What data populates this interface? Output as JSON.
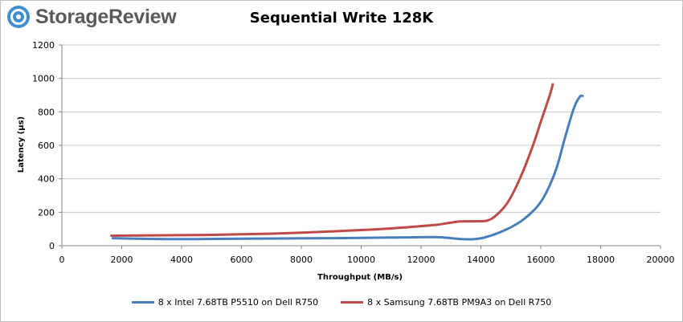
{
  "brand": {
    "name": "StorageReview",
    "logo_color": "#3f8fcf"
  },
  "chart_data": {
    "type": "line",
    "title": "Sequential Write 128K",
    "xlabel": "Throughput (MB/s)",
    "ylabel": "Latency (µs)",
    "xlim": [
      0,
      20000
    ],
    "ylim": [
      0,
      1200
    ],
    "x_ticks": [
      0,
      2000,
      4000,
      6000,
      8000,
      10000,
      12000,
      14000,
      16000,
      18000,
      20000
    ],
    "y_ticks": [
      0,
      200,
      400,
      600,
      800,
      1000,
      1200
    ],
    "grid": "horizontal",
    "legend": "bottom",
    "series": [
      {
        "name": "8 x Intel 7.68TB P5510 on Dell R750",
        "color": "#4a7ebb",
        "points": [
          [
            1700,
            45
          ],
          [
            2500,
            42
          ],
          [
            3500,
            40
          ],
          [
            4500,
            40
          ],
          [
            6000,
            42
          ],
          [
            8000,
            44
          ],
          [
            10000,
            47
          ],
          [
            12000,
            51
          ],
          [
            12600,
            51
          ],
          [
            13000,
            45
          ],
          [
            13400,
            39
          ],
          [
            13800,
            40
          ],
          [
            14100,
            48
          ],
          [
            14600,
            78
          ],
          [
            15200,
            130
          ],
          [
            15700,
            200
          ],
          [
            16100,
            290
          ],
          [
            16500,
            450
          ],
          [
            16800,
            640
          ],
          [
            17100,
            820
          ],
          [
            17300,
            890
          ],
          [
            17400,
            895
          ]
        ]
      },
      {
        "name": "8 x Samsung 7.68TB PM9A3 on Dell R750",
        "color": "#be4b48",
        "points": [
          [
            1650,
            60
          ],
          [
            3000,
            62
          ],
          [
            5000,
            65
          ],
          [
            7000,
            72
          ],
          [
            9000,
            85
          ],
          [
            10500,
            98
          ],
          [
            11500,
            110
          ],
          [
            12500,
            125
          ],
          [
            13000,
            138
          ],
          [
            13300,
            145
          ],
          [
            13800,
            146
          ],
          [
            14200,
            150
          ],
          [
            14500,
            180
          ],
          [
            14900,
            260
          ],
          [
            15300,
            400
          ],
          [
            15700,
            580
          ],
          [
            16000,
            740
          ],
          [
            16300,
            900
          ],
          [
            16400,
            965
          ]
        ]
      }
    ]
  }
}
